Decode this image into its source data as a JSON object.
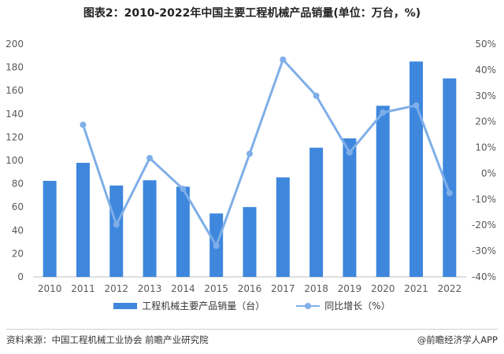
{
  "title": "图表2：2010-2022年中国主要工程机械产品销量(单位：万台，%)",
  "chart_data": {
    "type": "bar",
    "categories": [
      "2010",
      "2011",
      "2012",
      "2013",
      "2014",
      "2015",
      "2016",
      "2017",
      "2018",
      "2019",
      "2020",
      "2021",
      "2022"
    ],
    "series": [
      {
        "name": "工程机械主要产品销量（台）",
        "type": "bar",
        "axis": "left",
        "color": "#3e87dd",
        "values": [
          82.5,
          98,
          78.5,
          83,
          77.5,
          54.5,
          60,
          85.5,
          111,
          119,
          147,
          185,
          170.5
        ]
      },
      {
        "name": "同比增长（%）",
        "type": "line",
        "axis": "right",
        "color": "#7faee8",
        "values": [
          null,
          18.8,
          -19.8,
          5.9,
          -6.0,
          -28.0,
          7.6,
          44.0,
          30.0,
          8.1,
          23.5,
          26.3,
          -7.6
        ]
      }
    ],
    "y_left": {
      "min": 0,
      "max": 200,
      "ticks": [
        "0",
        "20",
        "40",
        "60",
        "80",
        "100",
        "120",
        "140",
        "160",
        "180",
        "200"
      ]
    },
    "y_right": {
      "min": -40,
      "max": 50,
      "ticks": [
        "-40%",
        "-30%",
        "-20%",
        "-10%",
        "0%",
        "10%",
        "20%",
        "30%",
        "40%",
        "50%"
      ]
    },
    "grid": false,
    "legend_position": "bottom"
  },
  "legend": {
    "bar_label": "工程机械主要产品销量（台）",
    "line_label": "同比增长（%）"
  },
  "footer": {
    "source": "资料来源：中国工程机械工业协会 前瞻产业研究院",
    "credit": "@前瞻经济学人APP"
  }
}
